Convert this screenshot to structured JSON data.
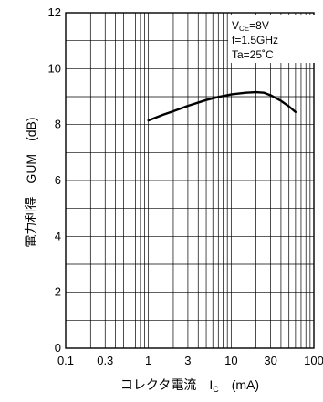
{
  "chart_data": {
    "type": "line",
    "x_scale": "log",
    "xlim": [
      0.1,
      100
    ],
    "ylim": [
      0,
      12
    ],
    "x_tick_labels": [
      "0.1",
      "0.3",
      "1",
      "3",
      "10",
      "30",
      "100"
    ],
    "x_tick_values": [
      0.1,
      0.3,
      1,
      3,
      10,
      30,
      100
    ],
    "y_tick_labels": [
      "0",
      "2",
      "4",
      "6",
      "8",
      "10",
      "12"
    ],
    "y_tick_values": [
      0,
      2,
      4,
      6,
      8,
      10,
      12
    ],
    "xlabel": "コレクタ電流　I",
    "xlabel_sub": "C",
    "xlabel_unit": "(mA)",
    "ylabel": "電力利得　GUM　(dB)",
    "grid": true,
    "annotations": {
      "vce_main": "V",
      "vce_sub": "CE",
      "vce_value": "=8V",
      "freq": "f=1.5GHz",
      "temp": "Ta=25˚C"
    },
    "series": [
      {
        "x": [
          1,
          1.5,
          2,
          3,
          5,
          7,
          10,
          15,
          20,
          25,
          30,
          40,
          50,
          60
        ],
        "y": [
          8.15,
          8.35,
          8.48,
          8.67,
          8.88,
          8.99,
          9.08,
          9.14,
          9.16,
          9.14,
          9.05,
          8.85,
          8.65,
          8.45
        ]
      }
    ],
    "color": "#000000"
  }
}
